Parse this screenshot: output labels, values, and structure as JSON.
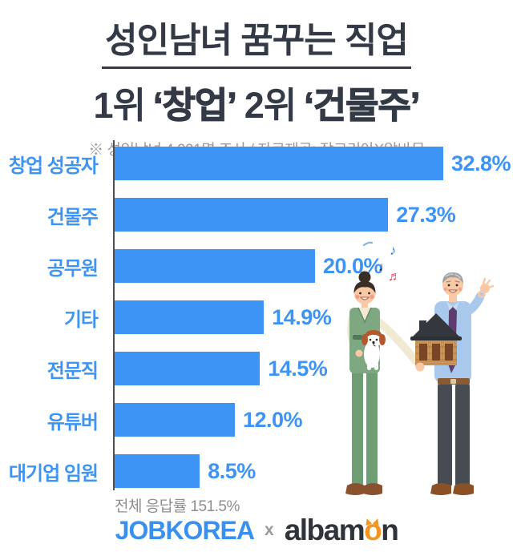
{
  "header": {
    "title_line1": "성인남녀 꿈꾸는 직업",
    "title_line2": [
      "1위",
      "‘창업’",
      "2위",
      "‘건물주’"
    ],
    "subtitle": "※ 성인남녀 4,091명 조사 / 자료제공: 잡코리아X알바몬"
  },
  "chart_data": {
    "type": "bar",
    "orientation": "horizontal",
    "title": "성인남녀 꿈꾸는 직업 1위 ‘창업’ 2위 ‘건물주’",
    "categories": [
      "창업 성공자",
      "건물주",
      "공무원",
      "기타",
      "전문직",
      "유튜버",
      "대기업 임원"
    ],
    "values": [
      32.8,
      27.3,
      20.0,
      14.9,
      14.5,
      12.0,
      8.5
    ],
    "value_labels": [
      "32.8%",
      "27.3%",
      "20.0%",
      "14.9%",
      "14.5%",
      "12.0%",
      "8.5%"
    ],
    "xlim": [
      0,
      35
    ],
    "grid": false,
    "legend": false,
    "bar_color": "#3e94f5",
    "footnote": "전체 응답률 151.5%"
  },
  "footer": {
    "logo_jobkorea": "JOBKOREA",
    "logo_separator": "x",
    "logo_albamon_part1": "albam",
    "logo_albamon_o": "o",
    "logo_albamon_part2": "n",
    "jobkorea_color": "#3a90f0",
    "albamon_color": "#2f333a",
    "albamon_orange": "#f5941f"
  },
  "illustration": {
    "description": "woman in green vet scrubs holding a beagle puppy; gray-haired man in blue shirt and purple tie holding a wooden house model and making an OK sign; music notes above",
    "music_note_1": "♪",
    "music_note_2": "♩",
    "music_note_3": "♬"
  }
}
